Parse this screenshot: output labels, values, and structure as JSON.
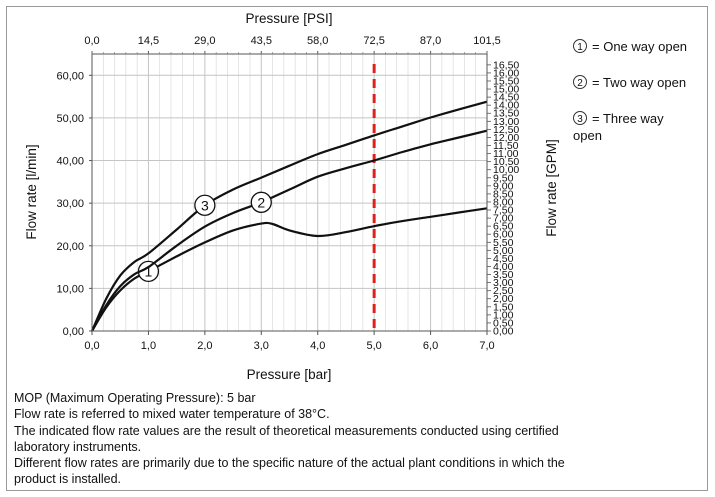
{
  "chart_data": {
    "type": "line",
    "title": "",
    "xlabel": "Pressure [bar]",
    "ylabel": "Flow rate [l/min]",
    "x2label": "Pressure [PSI]",
    "y2label": "Flow rate [GPM]",
    "xlim": [
      0,
      7
    ],
    "ylim": [
      0,
      65
    ],
    "x_ticks": [
      "0,0",
      "1,0",
      "2,0",
      "3,0",
      "4,0",
      "5,0",
      "6,0",
      "7,0"
    ],
    "y_ticks": [
      "0,00",
      "10,00",
      "20,00",
      "30,00",
      "40,00",
      "50,00",
      "60,00"
    ],
    "x2_ticks": [
      "0,0",
      "14,5",
      "29,0",
      "43,5",
      "58,0",
      "72,5",
      "87,0",
      "101,5"
    ],
    "y2_ticks": [
      "0,00",
      "0,50",
      "1,00",
      "1,50",
      "2,00",
      "2,50",
      "3,00",
      "3,50",
      "4,00",
      "4,50",
      "5,00",
      "5,50",
      "6,00",
      "6,50",
      "7,00",
      "7,50",
      "8,00",
      "8,50",
      "9,00",
      "9,50",
      "10,00",
      "10,50",
      "11,00",
      "11,50",
      "12,00",
      "12,50",
      "13,00",
      "13,50",
      "14,00",
      "14,50",
      "15,00",
      "15,50",
      "16,00",
      "16,50"
    ],
    "grid": true,
    "reference_line": {
      "x": 5.0,
      "color": "#e0201c",
      "style": "dashed"
    },
    "series": [
      {
        "name": "1",
        "marker_label": "1",
        "marker_x": 1.0,
        "x": [
          0,
          0.25,
          0.5,
          0.75,
          1.0,
          1.5,
          2.0,
          2.5,
          3.0,
          3.2,
          3.5,
          4.0,
          4.5,
          5.0,
          5.5,
          6.0,
          6.5,
          7.0
        ],
        "y": [
          0,
          5.5,
          9.5,
          12.3,
          14.0,
          17.5,
          20.8,
          23.6,
          25.2,
          25.1,
          23.6,
          22.3,
          23.2,
          24.6,
          25.8,
          26.8,
          27.8,
          28.8
        ]
      },
      {
        "name": "2",
        "marker_label": "2",
        "marker_x": 3.0,
        "x": [
          0,
          0.25,
          0.5,
          0.75,
          1.0,
          1.5,
          2.0,
          2.5,
          3.0,
          3.5,
          4.0,
          4.5,
          5.0,
          5.5,
          6.0,
          6.5,
          7.0
        ],
        "y": [
          0,
          6.0,
          10.5,
          13.3,
          15.0,
          20.0,
          24.5,
          27.7,
          30.2,
          33.2,
          36.2,
          38.2,
          40.0,
          42.0,
          43.8,
          45.4,
          47.0
        ]
      },
      {
        "name": "3",
        "marker_label": "3",
        "marker_x": 2.0,
        "x": [
          0,
          0.25,
          0.5,
          0.75,
          1.0,
          1.5,
          2.0,
          2.5,
          3.0,
          3.5,
          4.0,
          4.5,
          5.0,
          5.5,
          6.0,
          6.5,
          7.0
        ],
        "y": [
          0,
          7.5,
          13.0,
          16.2,
          18.2,
          23.8,
          29.5,
          33.2,
          36.0,
          38.8,
          41.5,
          43.7,
          45.9,
          48.0,
          50.1,
          52.0,
          53.8
        ]
      }
    ],
    "color": "#111111",
    "grid_color": "#d6d6d6"
  },
  "legend": [
    {
      "num": "1",
      "text": "= One way open"
    },
    {
      "num": "2",
      "text": "= Two way open"
    },
    {
      "num": "3",
      "text": "= Three way",
      "text2": "open"
    }
  ],
  "notes": {
    "mop": "MOP (Maximum Operating Pressure): 5 bar",
    "temp": "Flow rate is referred to mixed water temperature of 38°C.",
    "measure1": "The indicated flow rate values are the result of theoretical measurements conducted using certified",
    "measure2": "laboratory instruments.",
    "diff1": "Different flow rates are primarily due to the specific nature of the actual plant conditions in which the",
    "diff2": "product is installed."
  }
}
